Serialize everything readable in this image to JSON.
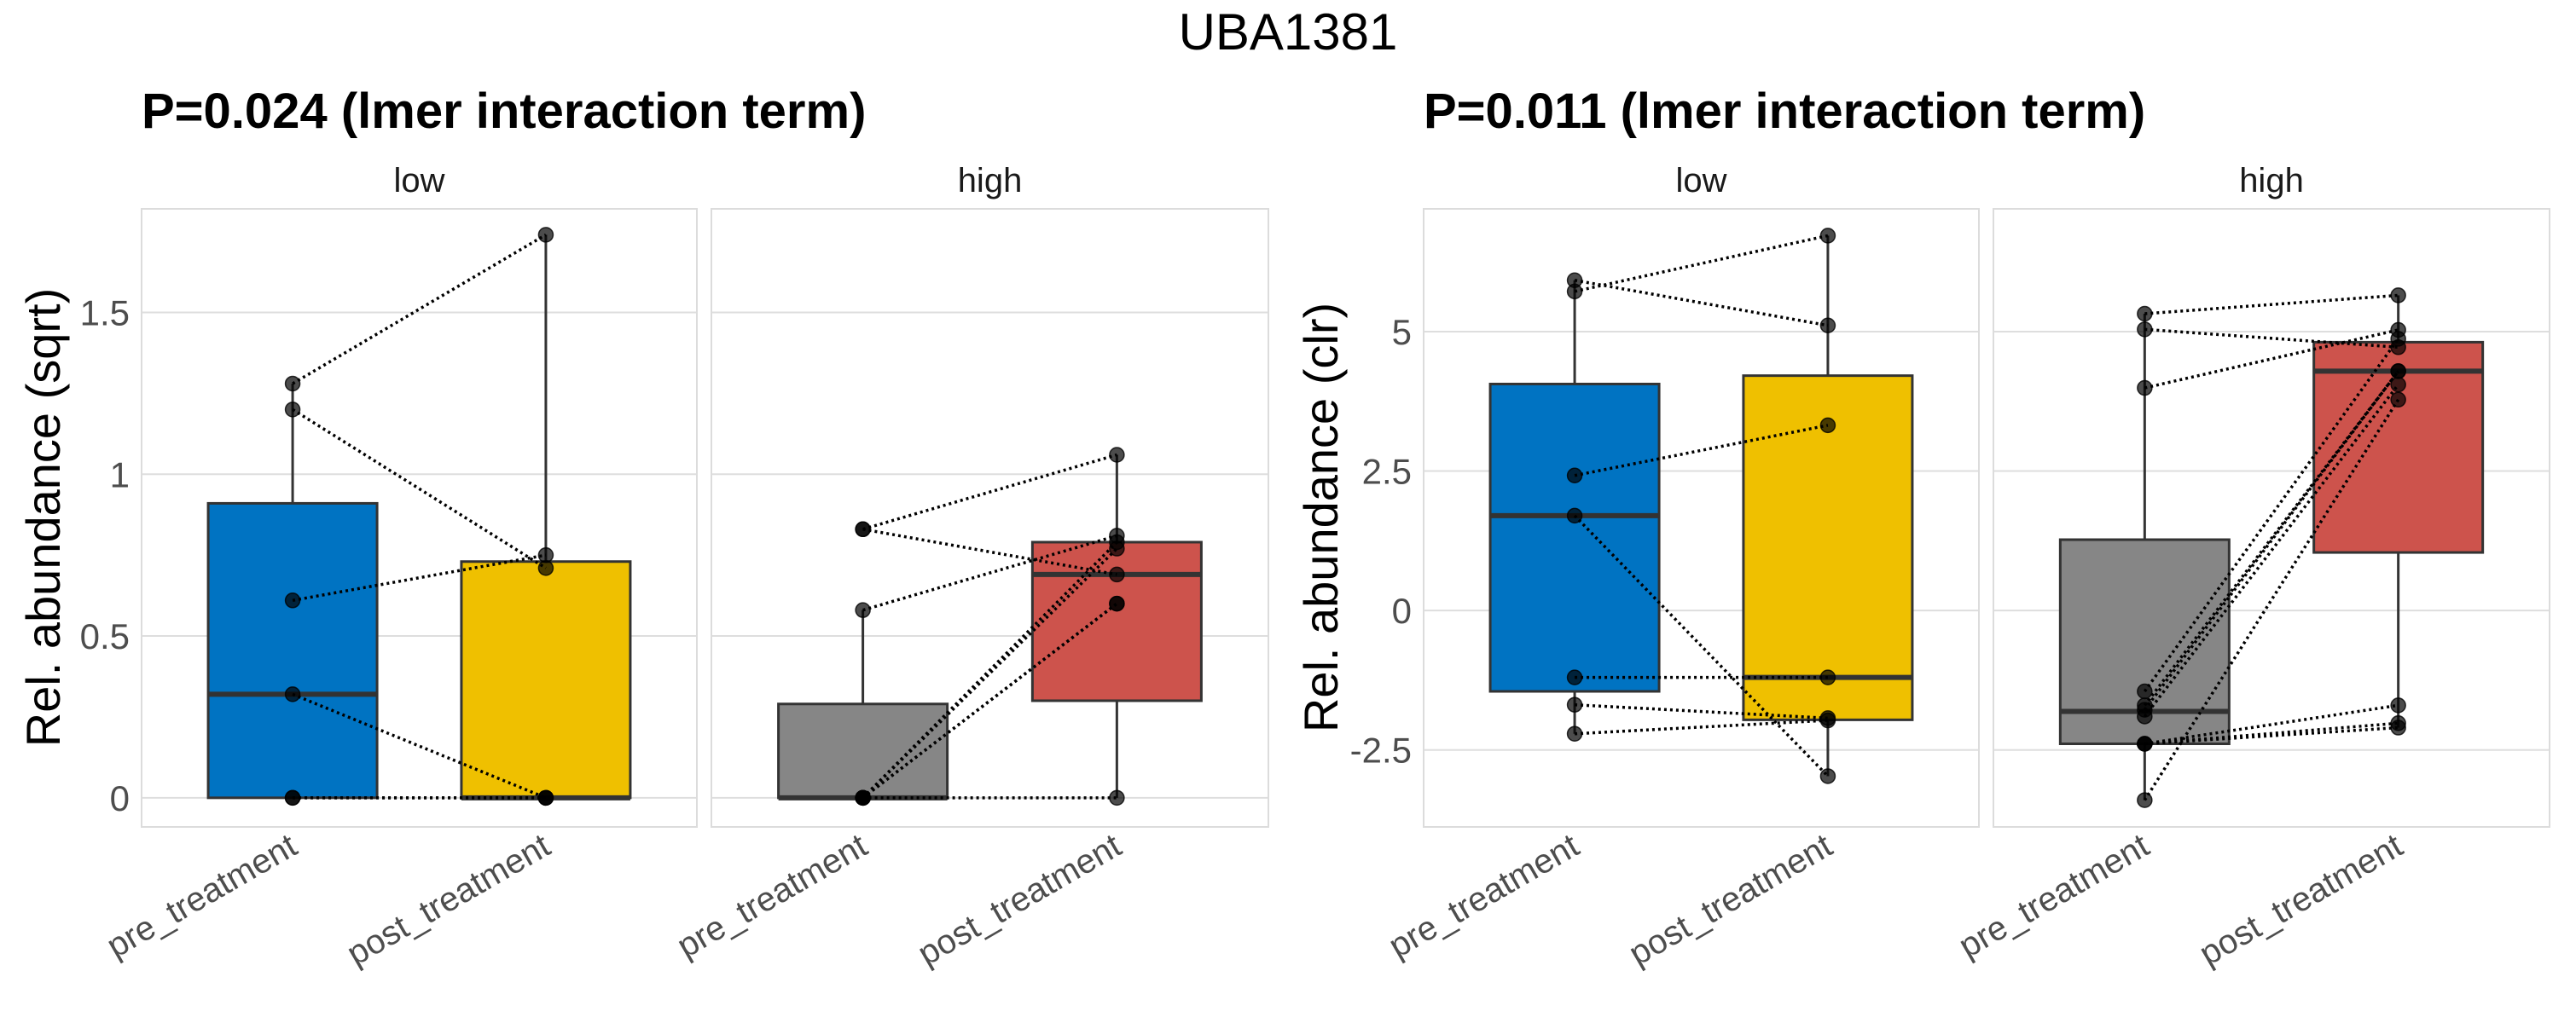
{
  "chart_data": {
    "type": "boxplot",
    "title": "UBA1381",
    "plots": [
      {
        "subtitle": "P=0.024 (lmer interaction term)",
        "ylabel": "Rel. abundance (sqrt)",
        "xlabel": "",
        "ylim": [
          -0.09,
          1.82
        ],
        "yticks": [
          0,
          0.5,
          1,
          1.5
        ],
        "ytick_labels": [
          "0",
          "0.5",
          "1",
          "1.5"
        ],
        "grid": true,
        "facets": [
          {
            "label": "low",
            "categories": [
              "pre_treatment",
              "post_treatment"
            ],
            "colors": [
              "#0073C2",
              "#EFC000"
            ],
            "boxes": [
              {
                "q1": 0,
                "median": 0.32,
                "q3": 0.91,
                "whisker_low": 0,
                "whisker_high": 1.28
              },
              {
                "q1": 0,
                "median": 0,
                "q3": 0.73,
                "whisker_low": 0,
                "whisker_high": 1.74
              }
            ],
            "pairs": [
              [
                1.28,
                1.74
              ],
              [
                1.2,
                0.71
              ],
              [
                0.61,
                0.75
              ],
              [
                0.32,
                0
              ],
              [
                0,
                0
              ],
              [
                0,
                0
              ]
            ]
          },
          {
            "label": "high",
            "categories": [
              "pre_treatment",
              "post_treatment"
            ],
            "colors": [
              "#868686",
              "#CD534C"
            ],
            "boxes": [
              {
                "q1": 0,
                "median": 0,
                "q3": 0.29,
                "whisker_low": 0,
                "whisker_high": 0.58
              },
              {
                "q1": 0.3,
                "median": 0.69,
                "q3": 0.79,
                "whisker_low": 0,
                "whisker_high": 1.06
              }
            ],
            "pairs": [
              [
                0.83,
                1.06
              ],
              [
                0.83,
                0.69
              ],
              [
                0.58,
                0.81
              ],
              [
                0,
                0.79
              ],
              [
                0,
                0.77
              ],
              [
                0,
                0.6
              ],
              [
                0,
                0.6
              ],
              [
                0,
                0
              ]
            ]
          }
        ]
      },
      {
        "subtitle": "P=0.011 (lmer interaction term)",
        "ylabel": "Rel. abundance (clr)",
        "xlabel": "",
        "ylim": [
          -3.88,
          7.2
        ],
        "yticks": [
          -2.5,
          0,
          2.5,
          5
        ],
        "ytick_labels": [
          "-2.5",
          "0",
          "2.5",
          "5"
        ],
        "grid": true,
        "facets": [
          {
            "label": "low",
            "categories": [
              "pre_treatment",
              "post_treatment"
            ],
            "colors": [
              "#0073C2",
              "#EFC000"
            ],
            "boxes": [
              {
                "q1": -1.45,
                "median": 1.7,
                "q3": 4.06,
                "whisker_low": -2.21,
                "whisker_high": 5.92
              },
              {
                "q1": -1.96,
                "median": -1.2,
                "q3": 4.21,
                "whisker_low": -2.97,
                "whisker_high": 6.72
              }
            ],
            "pairs": [
              [
                5.92,
                5.11
              ],
              [
                5.72,
                6.72
              ],
              [
                2.42,
                3.32
              ],
              [
                1.7,
                -2.97
              ],
              [
                -1.2,
                -1.2
              ],
              [
                -1.69,
                -1.93
              ],
              [
                -2.21,
                -1.97
              ]
            ]
          },
          {
            "label": "high",
            "categories": [
              "pre_treatment",
              "post_treatment"
            ],
            "colors": [
              "#868686",
              "#CD534C"
            ],
            "boxes": [
              {
                "q1": -2.39,
                "median": -1.81,
                "q3": 1.27,
                "whisker_low": -3.4,
                "whisker_high": 5.32
              },
              {
                "q1": 1.04,
                "median": 4.29,
                "q3": 4.81,
                "whisker_low": -2.1,
                "whisker_high": 5.65
              }
            ],
            "pairs": [
              [
                5.32,
                5.65
              ],
              [
                5.04,
                4.72
              ],
              [
                3.99,
                5.03
              ],
              [
                -1.45,
                4.87
              ],
              [
                -1.7,
                4.29
              ],
              [
                -1.78,
                4.29
              ],
              [
                -1.9,
                4.05
              ],
              [
                -2.39,
                -1.7
              ],
              [
                -2.39,
                -2.02
              ],
              [
                -2.39,
                -2.1
              ],
              [
                -3.4,
                3.78
              ]
            ]
          }
        ]
      }
    ]
  }
}
